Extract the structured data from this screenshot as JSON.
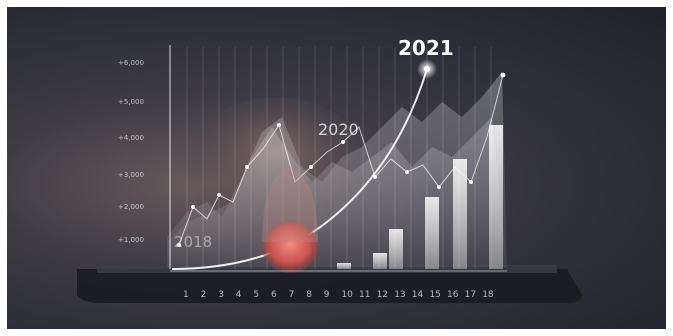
{
  "scene": {
    "y_ticks": [
      "+6,000",
      "+5,000",
      "+4,000",
      "+3,000",
      "+2,000",
      "+1,000"
    ],
    "x_ticks": [
      "1",
      "2",
      "3",
      "4",
      "5",
      "6",
      "7",
      "8",
      "9",
      "10",
      "11",
      "12",
      "13",
      "14",
      "15",
      "16",
      "17",
      "18"
    ],
    "years": {
      "y2018": "2018",
      "y2020": "2020",
      "y2021": "2021"
    },
    "bar_levels": [
      0.03,
      0.08,
      0.2,
      0.36,
      0.55,
      0.72
    ],
    "colors": {
      "accent": "#ffffff",
      "finger": "#e05a52",
      "background": "#2a2c36"
    }
  }
}
